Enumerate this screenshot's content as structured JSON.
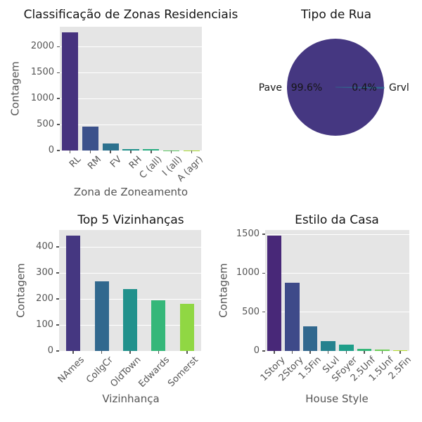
{
  "style": {
    "figure_bg": "#ffffff",
    "plot_bg": "#e5e5e5",
    "grid_color": "#ffffff",
    "tick_color": "#555555",
    "label_color": "#555555",
    "title_color": "#151515"
  },
  "chart_data": [
    {
      "id": "zoning",
      "type": "bar",
      "title": "Classificação de Zonas Residenciais",
      "xlabel": "Zona de Zoneamento",
      "ylabel": "Contagem",
      "categories": [
        "RL",
        "RM",
        "FV",
        "RH",
        "C (all)",
        "I (all)",
        "A (agr)"
      ],
      "values": [
        2273,
        462,
        139,
        27,
        25,
        2,
        2
      ],
      "bar_colors": [
        "#46327e",
        "#3b518b",
        "#2c718e",
        "#21918c",
        "#27ad81",
        "#5cc863",
        "#aadc32"
      ],
      "yticks": [
        0,
        500,
        1000,
        1500,
        2000
      ],
      "ylim": [
        0,
        2386
      ],
      "bar_width_frac": 0.8,
      "grid": true,
      "x_tick_rotation": 45
    },
    {
      "id": "street",
      "type": "pie",
      "title": "Tipo de Rua",
      "slices": [
        {
          "label": "Pave",
          "value": 99.6,
          "pct_label": "99.6%",
          "color": "#453781"
        },
        {
          "label": "Grvl",
          "value": 0.4,
          "pct_label": "0.4%",
          "color": "#31688e"
        }
      ],
      "start_angle": 0
    },
    {
      "id": "neighborhoods",
      "type": "bar",
      "title": "Top 5 Vizinhanças",
      "xlabel": "Vizinhança",
      "ylabel": "Contagem",
      "categories": [
        "NAmes",
        "CollgCr",
        "OldTown",
        "Edwards",
        "Somerst"
      ],
      "values": [
        443,
        267,
        239,
        194,
        182
      ],
      "bar_colors": [
        "#453781",
        "#31688e",
        "#21918c",
        "#35b779",
        "#90d743"
      ],
      "yticks": [
        0,
        100,
        200,
        300,
        400
      ],
      "ylim": [
        0,
        465
      ],
      "bar_width_frac": 0.5,
      "grid": true,
      "x_tick_rotation": 45
    },
    {
      "id": "house_style",
      "type": "bar",
      "title": "Estilo da Casa",
      "xlabel": "House Style",
      "ylabel": "Contagem",
      "categories": [
        "1Story",
        "2Story",
        "1.5Fin",
        "SLvl",
        "SFoyer",
        "2.5Unf",
        "1.5Unf",
        "2.5Fin"
      ],
      "values": [
        1481,
        873,
        314,
        128,
        83,
        24,
        19,
        8
      ],
      "bar_colors": [
        "#482878",
        "#3e4a89",
        "#31688e",
        "#26828e",
        "#1f9e89",
        "#35b779",
        "#6ece58",
        "#b5de2b"
      ],
      "yticks": [
        0,
        500,
        1000,
        1500
      ],
      "ylim": [
        0,
        1555
      ],
      "bar_width_frac": 0.8,
      "grid": true,
      "x_tick_rotation": 45
    }
  ]
}
